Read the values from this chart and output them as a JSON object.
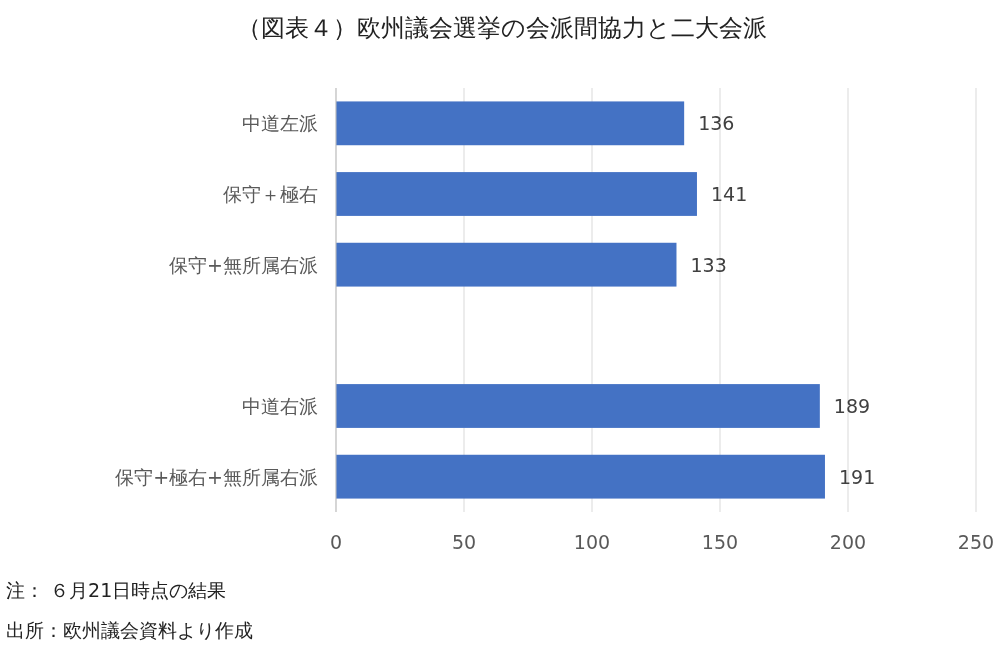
{
  "chart_data": {
    "type": "bar",
    "orientation": "horizontal",
    "title": "（図表４）欧州議会選挙の会派間協力と二大会派",
    "categories": [
      "中道左派",
      "保守＋極右",
      "保守+無所属右派",
      null,
      "中道右派",
      "保守+極右+無所属右派"
    ],
    "values": [
      136,
      141,
      133,
      null,
      189,
      191
    ],
    "color": "#4472c4",
    "xlim": [
      0,
      250
    ],
    "xticks": [
      0,
      50,
      100,
      150,
      200,
      250
    ],
    "grid": "x",
    "data_labels": true,
    "annotations": [
      "注： ６月21日時点の結果",
      "出所：欧州議会資料より作成"
    ]
  }
}
